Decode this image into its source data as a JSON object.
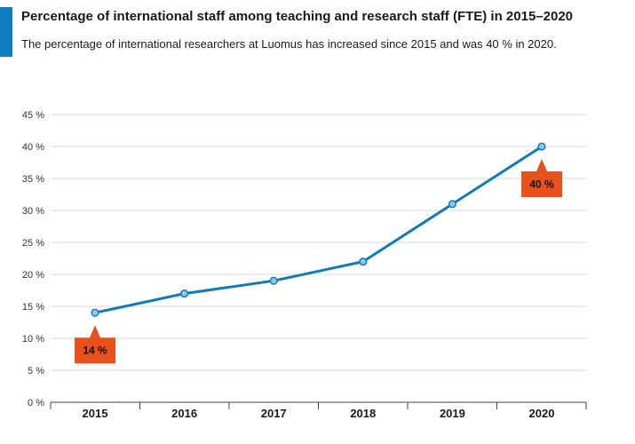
{
  "header": {
    "title": "Percentage of international staff among teaching and research staff (FTE) in 2015–2020",
    "subtitle": "The percentage of international researchers at Luomus has increased since 2015 and was 40 % in 2020."
  },
  "colors": {
    "accent": "#0f7cc0",
    "line": "#1479b8",
    "marker_fill": "#8ccaf0",
    "callout": "#e8511c",
    "grid": "#d9d9d9"
  },
  "chart_data": {
    "type": "line",
    "categories": [
      "2015",
      "2016",
      "2017",
      "2018",
      "2019",
      "2020"
    ],
    "series": [
      {
        "values": [
          14,
          17,
          19,
          22,
          31,
          40
        ]
      }
    ],
    "y_ticks": [
      "0 %",
      "5 %",
      "10 %",
      "15 %",
      "20 %",
      "25 %",
      "30 %",
      "35 %",
      "40 %",
      "45 %"
    ],
    "ylim": [
      0,
      45
    ],
    "grid": true,
    "annotations": [
      {
        "category": "2015",
        "label": "14 %"
      },
      {
        "category": "2020",
        "label": "40 %"
      }
    ]
  }
}
